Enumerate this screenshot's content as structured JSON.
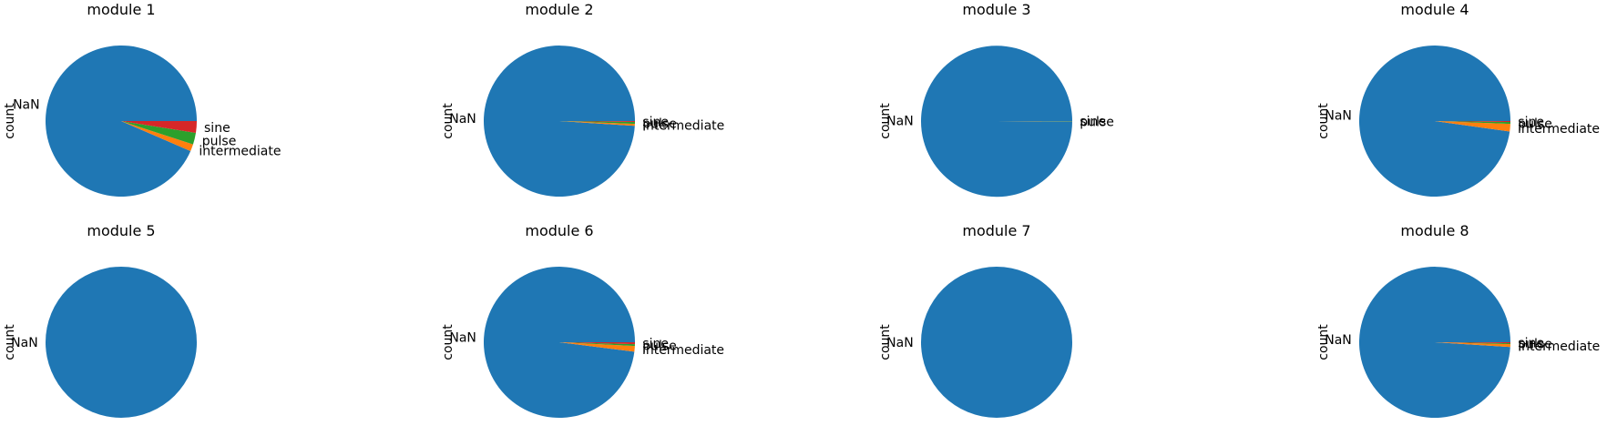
{
  "chart_data": [
    {
      "type": "pie",
      "title": "module 1",
      "ylabel": "count",
      "categories": [
        "NaN",
        "intermediate",
        "pulse",
        "sine"
      ],
      "values": [
        93.5,
        1.5,
        2.5,
        2.5
      ]
    },
    {
      "type": "pie",
      "title": "module 2",
      "ylabel": "count",
      "categories": [
        "NaN",
        "intermediate",
        "pulse",
        "sine"
      ],
      "values": [
        99.0,
        0.4,
        0.4,
        0.2
      ]
    },
    {
      "type": "pie",
      "title": "module 3",
      "ylabel": "count",
      "categories": [
        "NaN",
        "pulse",
        "sine"
      ],
      "values": [
        99.9,
        0.05,
        0.05
      ]
    },
    {
      "type": "pie",
      "title": "module 4",
      "ylabel": "count",
      "categories": [
        "NaN",
        "intermediate",
        "pulse",
        "sine"
      ],
      "values": [
        97.8,
        1.6,
        0.4,
        0.2
      ]
    },
    {
      "type": "pie",
      "title": "module 5",
      "ylabel": "count",
      "categories": [
        "NaN"
      ],
      "values": [
        100
      ]
    },
    {
      "type": "pie",
      "title": "module 6",
      "ylabel": "count",
      "categories": [
        "NaN",
        "intermediate",
        "pulse",
        "sine"
      ],
      "values": [
        98.0,
        1.2,
        0.4,
        0.4
      ]
    },
    {
      "type": "pie",
      "title": "module 7",
      "ylabel": "count",
      "categories": [
        "NaN"
      ],
      "values": [
        100
      ]
    },
    {
      "type": "pie",
      "title": "module 8",
      "ylabel": "count",
      "categories": [
        "NaN",
        "intermediate",
        "pulse",
        "sine"
      ],
      "values": [
        99.0,
        0.6,
        0.2,
        0.2
      ]
    }
  ],
  "colors": [
    "#1f77b4",
    "#ff7f0e",
    "#2ca02c",
    "#d62728"
  ]
}
